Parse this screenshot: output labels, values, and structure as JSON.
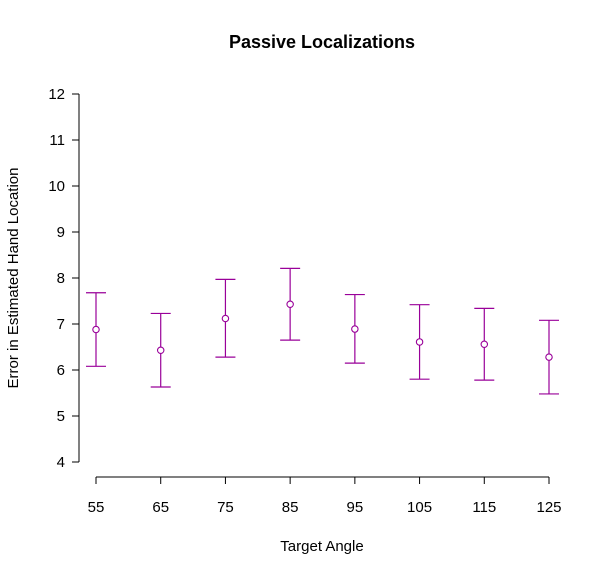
{
  "chart_data": {
    "type": "scatter",
    "title": "Passive Localizations",
    "xlabel": "Target Angle",
    "ylabel": "Error in Estimated Hand Location",
    "x": [
      55,
      65,
      75,
      85,
      95,
      105,
      115,
      125
    ],
    "series": [
      {
        "y": [
          6.88,
          6.43,
          7.12,
          7.43,
          6.89,
          6.61,
          6.56,
          6.28
        ],
        "lower": [
          6.08,
          5.63,
          6.28,
          6.65,
          6.15,
          5.8,
          5.78,
          5.48
        ],
        "upper": [
          7.68,
          7.23,
          7.97,
          8.21,
          7.64,
          7.42,
          7.34,
          7.08
        ],
        "color": "#990099",
        "marker": "open-circle",
        "error_bars": true
      }
    ],
    "xticks": [
      55,
      65,
      75,
      85,
      95,
      105,
      115,
      125
    ],
    "yticks": [
      4,
      5,
      6,
      7,
      8,
      9,
      10,
      11,
      12
    ],
    "xlim": [
      55,
      125
    ],
    "ylim": [
      4,
      12
    ],
    "grid": false,
    "axes_color": "#000000"
  }
}
